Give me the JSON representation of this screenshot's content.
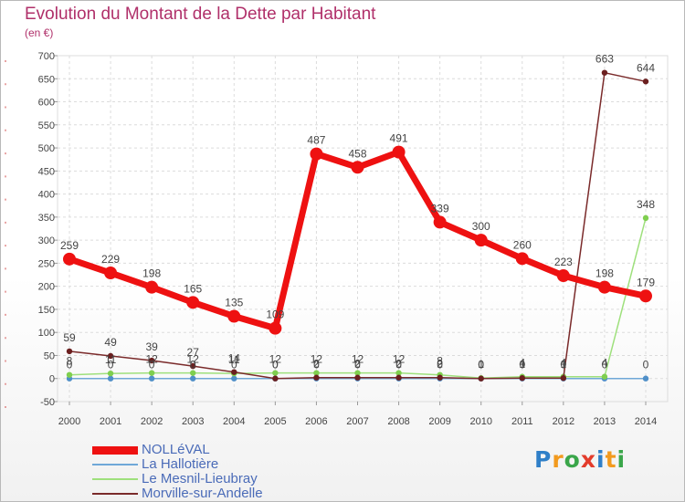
{
  "header": {
    "title": "Evolution du Montant de la Dette par Habitant",
    "subtitle": "(en €)"
  },
  "logo": {
    "letters": [
      "P",
      "r",
      "o",
      "x",
      "i",
      "t",
      "i"
    ],
    "colors": [
      "#2f7fc8",
      "#f29a1e",
      "#3aa64a",
      "#e33c2c",
      "#2f7fc8",
      "#f29a1e",
      "#3aa64a"
    ]
  },
  "chart_data": {
    "type": "line",
    "x": [
      "2000",
      "2001",
      "2002",
      "2003",
      "2004",
      "2005",
      "2006",
      "2007",
      "2008",
      "2009",
      "2010",
      "2011",
      "2012",
      "2013",
      "2014"
    ],
    "ylim": [
      -50,
      700
    ],
    "yticks": [
      "-50",
      "0",
      "50",
      "100",
      "150",
      "200",
      "250",
      "300",
      "350",
      "400",
      "450",
      "500",
      "550",
      "600",
      "650",
      "700"
    ],
    "grid": true,
    "legend_position": "bottom-left",
    "series": [
      {
        "name": "NOLLéVAL",
        "color": "#ee1111",
        "values": [
          259,
          229,
          198,
          165,
          135,
          109,
          487,
          458,
          491,
          339,
          300,
          260,
          223,
          198,
          179
        ],
        "labels": [
          "259",
          "229",
          "198",
          "165",
          "135",
          "109",
          "487",
          "458",
          "491",
          "339",
          "300",
          "260",
          "223",
          "198",
          "179"
        ]
      },
      {
        "name": "La Hallotière",
        "color": "#6fa8d8",
        "values": [
          0,
          0,
          0,
          0,
          0,
          0,
          0,
          0,
          0,
          0,
          0,
          0,
          0,
          0,
          0
        ],
        "labels": [
          "0",
          "0",
          "0",
          "0",
          "0",
          "0",
          "0",
          "0",
          "0",
          "0",
          "0",
          "0",
          "0",
          "0",
          "0"
        ]
      },
      {
        "name": "Le Mesnil-Lieubray",
        "color": "#9ee07c",
        "values": [
          8,
          11,
          12,
          12,
          11,
          12,
          12,
          12,
          12,
          8,
          1,
          4,
          4,
          4,
          348
        ],
        "labels": [
          "8",
          "11",
          "12",
          "12",
          "11",
          "12",
          "12",
          "12",
          "12",
          "8",
          "1",
          "4",
          "4",
          "4",
          "348"
        ]
      },
      {
        "name": "Morville-sur-Andelle",
        "color": "#7a2a2a",
        "values": [
          59,
          49,
          39,
          27,
          14,
          0,
          2,
          2,
          2,
          2,
          0,
          1,
          1,
          663,
          644
        ],
        "labels": [
          "59",
          "49",
          "39",
          "27",
          "14",
          "0",
          "2",
          "2",
          "2",
          "2",
          "0",
          "1",
          "1",
          "663",
          "644"
        ]
      }
    ]
  }
}
